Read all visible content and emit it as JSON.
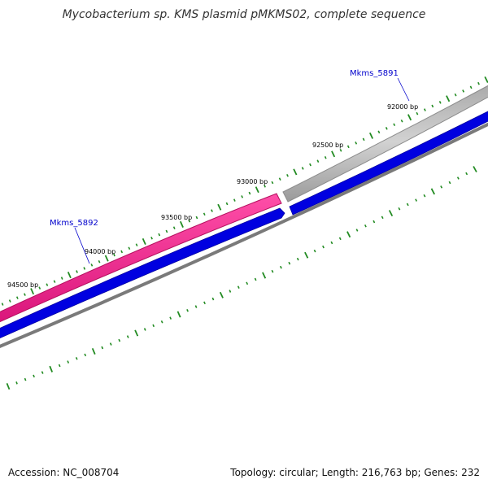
{
  "title": "Mycobacterium sp. KMS plasmid pMKMS02, complete sequence",
  "footer": {
    "accession": "Accession: NC_008704",
    "topology": "Topology: circular; Length: 216,763 bp; Genes: 232"
  },
  "colors": {
    "forward_pink": "#ff1a8c",
    "forward_pink_dark": "#c0106a",
    "forward_gray": "#c0c0c0",
    "forward_gray_dark": "#8c8c8c",
    "blue": "#0000e0",
    "backbone": "#808080",
    "tick_green": "#228b22",
    "gene_label": "#0000cc"
  },
  "tick_labels": [
    "92000 bp",
    "92500 bp",
    "93000 bp",
    "93500 bp",
    "94000 bp",
    "94500 bp"
  ],
  "genes": [
    {
      "name": "Mkms_5891"
    },
    {
      "name": "Mkms_5892"
    }
  ]
}
